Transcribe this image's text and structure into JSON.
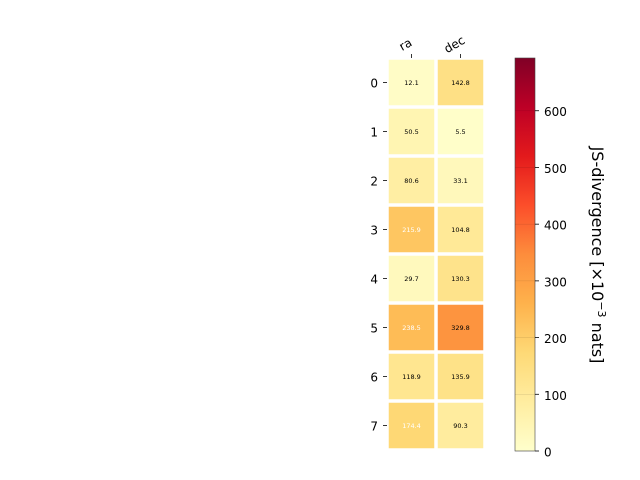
{
  "chart_data": {
    "type": "heatmap",
    "columns": [
      "ra",
      "dec"
    ],
    "rows": [
      "0",
      "1",
      "2",
      "3",
      "4",
      "5",
      "6",
      "7"
    ],
    "values": [
      [
        12.1,
        142.8
      ],
      [
        50.5,
        5.5
      ],
      [
        80.6,
        33.1
      ],
      [
        215.9,
        104.8
      ],
      [
        29.7,
        130.3
      ],
      [
        238.5,
        329.8
      ],
      [
        118.9,
        135.9
      ],
      [
        174.4,
        90.3
      ]
    ],
    "cell_text": [
      [
        "12.1",
        "142.8"
      ],
      [
        "50.5",
        "5.5"
      ],
      [
        "80.6",
        "33.1"
      ],
      [
        "215.9",
        "104.8"
      ],
      [
        "29.7",
        "130.3"
      ],
      [
        "238.5",
        "329.8"
      ],
      [
        "118.9",
        "135.9"
      ],
      [
        "174.4",
        "90.3"
      ]
    ],
    "colorbar": {
      "label_main": "JS-divergence [×10",
      "label_exp": "−3",
      "label_unit": " nats]",
      "range": [
        0,
        693
      ],
      "ticks": [
        "0",
        "100",
        "200",
        "300",
        "400",
        "500",
        "600"
      ],
      "tick_values": [
        0,
        100,
        200,
        300,
        400,
        500,
        600
      ],
      "colormap": "YlOrRd"
    },
    "colors": {
      "cmap": [
        "#ffffcc",
        "#ffeda0",
        "#fed976",
        "#feb24c",
        "#fd8d3c",
        "#fc4e2a",
        "#e31a1c",
        "#bd0026",
        "#800026"
      ],
      "light_text": "#ffffff",
      "dark_text": "#000000"
    }
  }
}
